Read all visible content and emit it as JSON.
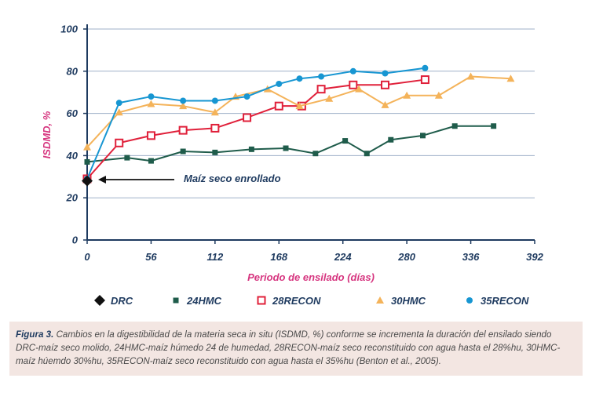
{
  "chart_data": {
    "type": "line",
    "ylabel": "ISDMD, %",
    "xlabel": "Periodo de ensilado (días)",
    "xlim": [
      0,
      392
    ],
    "ylim": [
      0,
      100
    ],
    "xticks": [
      0,
      56,
      112,
      168,
      224,
      280,
      336,
      392
    ],
    "yticks": [
      0,
      20,
      40,
      60,
      80,
      100
    ],
    "grid": "horizontal",
    "legend_placement": "bottom",
    "annotation": "Maíz seco enrollado",
    "series": [
      {
        "name": "DRC",
        "marker": "diamond",
        "color": "#111111",
        "x": [
          0
        ],
        "y": [
          28
        ]
      },
      {
        "name": "24HMC",
        "marker": "square",
        "color": "#1f5c4b",
        "x": [
          0,
          35,
          56,
          84,
          112,
          144,
          174,
          200,
          226,
          245,
          266,
          294,
          322,
          356
        ],
        "y": [
          37,
          39,
          37.5,
          42,
          41.5,
          43,
          43.5,
          41,
          47,
          41,
          47.5,
          49.5,
          54,
          54
        ]
      },
      {
        "name": "28RECON",
        "marker": "square-open",
        "color": "#e0203a",
        "x": [
          0,
          28,
          56,
          84,
          112,
          140,
          168,
          188,
          205,
          233,
          261,
          296
        ],
        "y": [
          29,
          46,
          49.5,
          52,
          53,
          58,
          63.5,
          63.5,
          71.5,
          73.5,
          73.5,
          76
        ]
      },
      {
        "name": "30HMC",
        "marker": "triangle",
        "color": "#f4b35a",
        "x": [
          0,
          28,
          56,
          84,
          112,
          130,
          158,
          186,
          212,
          238,
          261,
          280,
          308,
          336,
          371
        ],
        "y": [
          44,
          60.5,
          64.5,
          63.5,
          60.5,
          68,
          71.5,
          63.5,
          67,
          71.5,
          64,
          68.5,
          68.5,
          77.5,
          76.5
        ]
      },
      {
        "name": "35RECON",
        "marker": "circle",
        "color": "#1796d2",
        "x": [
          0,
          28,
          56,
          84,
          112,
          140,
          168,
          186,
          205,
          233,
          261,
          296
        ],
        "y": [
          29,
          65,
          68,
          66,
          66,
          68,
          74,
          76.5,
          77.5,
          80,
          79,
          81.5
        ]
      }
    ]
  },
  "caption": {
    "label": "Figura 3.",
    "text": "Cambios en la digestibilidad de la materia seca in situ (ISDMD, %) conforme se incrementa la duración del ensilado siendo DRC-maíz seco molido, 24HMC-maíz húmedo 24 de humedad, 28RECON-maíz seco reconstituido con agua hasta el 28%hu, 30HMC-maíz húemdo 30%hu, 35RECON-maíz seco reconstituido con agua hasta el 35%hu (Benton et al., 2005)."
  }
}
